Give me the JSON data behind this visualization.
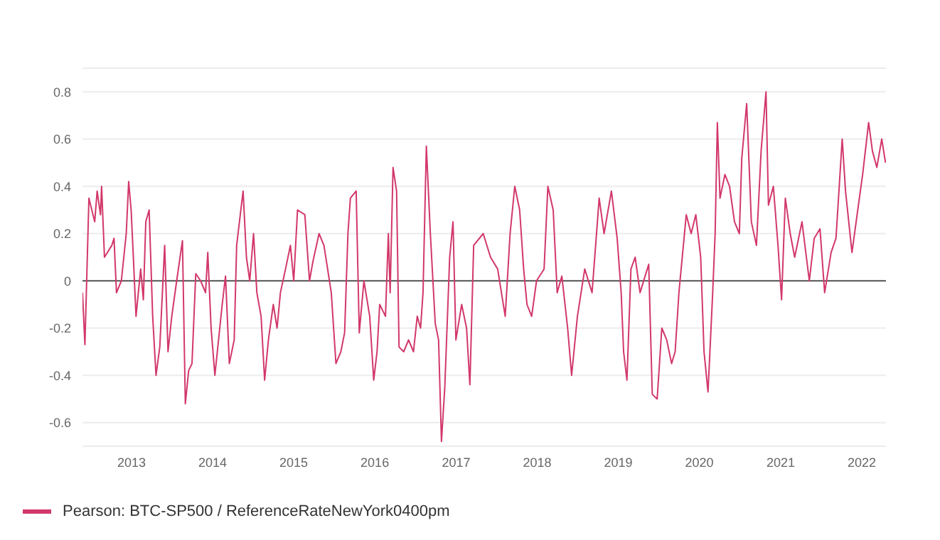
{
  "chart_data": {
    "type": "line",
    "x": [
      "2012-05-25",
      "2012-06-05",
      "2012-06-23",
      "2012-07-19",
      "2012-07-30",
      "2012-08-14",
      "2012-08-19",
      "2012-09-01",
      "2012-10-04",
      "2012-10-14",
      "2012-10-25",
      "2012-11-16",
      "2012-12-08",
      "2012-12-19",
      "2012-12-30",
      "2013-01-10",
      "2013-01-21",
      "2013-02-11",
      "2013-02-23",
      "2013-03-06",
      "2013-03-21",
      "2013-04-06",
      "2013-04-21",
      "2013-05-08",
      "2013-05-30",
      "2013-06-14",
      "2013-07-01",
      "2013-07-23",
      "2013-08-18",
      "2013-08-31",
      "2013-09-15",
      "2013-09-30",
      "2013-10-17",
      "2013-11-08",
      "2013-11-30",
      "2013-12-10",
      "2013-12-25",
      "2014-01-11",
      "2014-02-02",
      "2014-02-13",
      "2014-02-28",
      "2014-03-17",
      "2014-04-08",
      "2014-04-19",
      "2014-05-18",
      "2014-06-02",
      "2014-06-17",
      "2014-07-04",
      "2014-07-19",
      "2014-08-07",
      "2014-08-23",
      "2014-09-09",
      "2014-10-01",
      "2014-10-18",
      "2014-11-02",
      "2014-11-25",
      "2014-12-17",
      "2015-01-01",
      "2015-01-18",
      "2015-02-20",
      "2015-03-13",
      "2015-03-28",
      "2015-04-25",
      "2015-05-17",
      "2015-06-19",
      "2015-07-10",
      "2015-08-01",
      "2015-08-18",
      "2015-09-02",
      "2015-09-13",
      "2015-10-09",
      "2015-10-23",
      "2015-11-13",
      "2015-12-09",
      "2015-12-27",
      "2016-01-11",
      "2016-01-23",
      "2016-02-18",
      "2016-03-02",
      "2016-03-10",
      "2016-03-23",
      "2016-04-08",
      "2016-04-19",
      "2016-05-10",
      "2016-06-01",
      "2016-06-23",
      "2016-07-10",
      "2016-07-25",
      "2016-08-05",
      "2016-08-20",
      "2016-09-07",
      "2016-09-29",
      "2016-10-14",
      "2016-10-27",
      "2016-11-11",
      "2016-12-03",
      "2016-12-18",
      "2016-12-31",
      "2017-01-26",
      "2017-02-17",
      "2017-03-04",
      "2017-03-21",
      "2017-05-03",
      "2017-06-05",
      "2017-07-07",
      "2017-08-10",
      "2017-09-01",
      "2017-09-22",
      "2017-10-14",
      "2017-11-01",
      "2017-11-16",
      "2017-12-07",
      "2017-12-29",
      "2018-02-01",
      "2018-02-18",
      "2018-03-14",
      "2018-04-01",
      "2018-04-22",
      "2018-05-18",
      "2018-06-05",
      "2018-07-01",
      "2018-08-03",
      "2018-09-05",
      "2018-10-07",
      "2018-10-29",
      "2018-12-01",
      "2018-12-27",
      "2019-01-14",
      "2019-01-25",
      "2019-02-09",
      "2019-02-27",
      "2019-03-18",
      "2019-04-09",
      "2019-05-18",
      "2019-06-03",
      "2019-06-25",
      "2019-07-16",
      "2019-08-07",
      "2019-08-29",
      "2019-09-14",
      "2019-10-01",
      "2019-11-03",
      "2019-11-25",
      "2019-12-16",
      "2020-01-07",
      "2020-01-22",
      "2020-02-09",
      "2020-03-01",
      "2020-03-12",
      "2020-03-22",
      "2020-04-03",
      "2020-04-25",
      "2020-05-16",
      "2020-06-07",
      "2020-06-29",
      "2020-07-10",
      "2020-08-01",
      "2020-08-22",
      "2020-09-14",
      "2020-10-05",
      "2020-10-27",
      "2020-11-07",
      "2020-11-29",
      "2020-12-20",
      "2021-01-05",
      "2021-01-22",
      "2021-02-13",
      "2021-03-05",
      "2021-04-07",
      "2021-05-10",
      "2021-06-01",
      "2021-06-27",
      "2021-07-18",
      "2021-08-16",
      "2021-09-07",
      "2021-10-05",
      "2021-10-20",
      "2021-11-18",
      "2021-12-14",
      "2022-01-05",
      "2022-02-01",
      "2022-02-18",
      "2022-03-10",
      "2022-04-01",
      "2022-04-18"
    ],
    "series": [
      {
        "name": "Pearson: BTC-SP500 / ReferenceRateNewYork0400pm",
        "color": "#d2386a",
        "values": [
          -0.05,
          -0.27,
          0.35,
          0.25,
          0.38,
          0.28,
          0.4,
          0.1,
          0.15,
          0.18,
          -0.05,
          0.0,
          0.2,
          0.42,
          0.3,
          0.08,
          -0.15,
          0.05,
          -0.08,
          0.25,
          0.3,
          -0.15,
          -0.4,
          -0.28,
          0.15,
          -0.3,
          -0.15,
          0.0,
          0.17,
          -0.52,
          -0.38,
          -0.35,
          0.03,
          0.0,
          -0.05,
          0.12,
          -0.2,
          -0.4,
          -0.2,
          -0.1,
          0.02,
          -0.35,
          -0.25,
          0.15,
          0.38,
          0.1,
          0.0,
          0.2,
          -0.05,
          -0.15,
          -0.42,
          -0.25,
          -0.1,
          -0.2,
          -0.05,
          0.05,
          0.15,
          0.0,
          0.3,
          0.28,
          0.0,
          0.08,
          0.2,
          0.15,
          -0.05,
          -0.35,
          -0.3,
          -0.22,
          0.2,
          0.35,
          0.38,
          -0.22,
          0.0,
          -0.15,
          -0.42,
          -0.3,
          -0.1,
          -0.15,
          0.2,
          -0.05,
          0.48,
          0.38,
          -0.28,
          -0.3,
          -0.25,
          -0.3,
          -0.15,
          -0.2,
          -0.05,
          0.57,
          0.2,
          -0.18,
          -0.25,
          -0.68,
          -0.45,
          0.1,
          0.25,
          -0.25,
          -0.1,
          -0.2,
          -0.44,
          0.15,
          0.2,
          0.1,
          0.05,
          -0.15,
          0.2,
          0.4,
          0.3,
          0.05,
          -0.1,
          -0.15,
          0.0,
          0.05,
          0.4,
          0.3,
          -0.05,
          0.02,
          -0.2,
          -0.4,
          -0.15,
          0.05,
          -0.05,
          0.35,
          0.2,
          0.38,
          0.18,
          -0.05,
          -0.3,
          -0.42,
          0.05,
          0.1,
          -0.05,
          0.07,
          -0.48,
          -0.5,
          -0.2,
          -0.25,
          -0.35,
          -0.3,
          -0.05,
          0.28,
          0.2,
          0.28,
          0.1,
          -0.3,
          -0.47,
          -0.05,
          0.2,
          0.67,
          0.35,
          0.45,
          0.4,
          0.25,
          0.2,
          0.52,
          0.75,
          0.25,
          0.15,
          0.55,
          0.8,
          0.32,
          0.4,
          0.15,
          -0.08,
          0.35,
          0.2,
          0.1,
          0.25,
          0.0,
          0.18,
          0.22,
          -0.05,
          0.12,
          0.18,
          0.6,
          0.38,
          0.12,
          0.3,
          0.45,
          0.67,
          0.55,
          0.48,
          0.6,
          0.5
        ]
      }
    ],
    "xlim": [
      "2012-05-25",
      "2022-04-20"
    ],
    "xticks": [
      "2013",
      "2014",
      "2015",
      "2016",
      "2017",
      "2018",
      "2019",
      "2020",
      "2021",
      "2022"
    ],
    "ylim": [
      -0.7,
      0.9
    ],
    "yticks": [
      -0.6,
      -0.4,
      -0.2,
      0,
      0.2,
      0.4,
      0.6,
      0.8
    ],
    "ref_lines": [
      {
        "axis": "y",
        "value": 0,
        "color": "#555555"
      }
    ],
    "grid": "y",
    "legend": "bottom left",
    "marker": "none",
    "line_style": "solid"
  }
}
